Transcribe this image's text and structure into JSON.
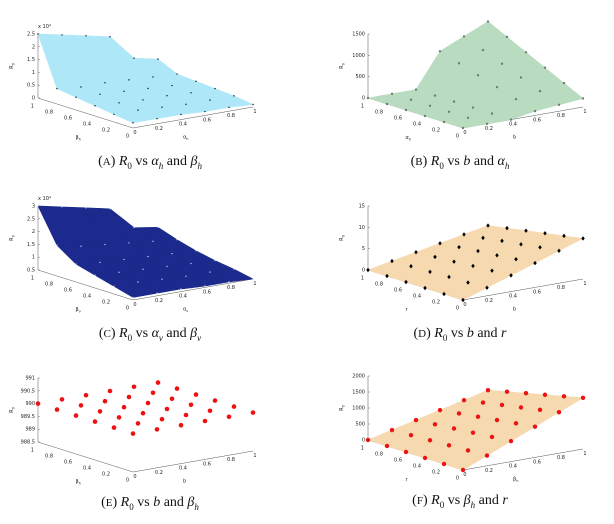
{
  "caption_words": {
    "lhs": "R",
    "lhs_sub": "0",
    "vs": "vs",
    "and": "and"
  },
  "chart_data": [
    {
      "type": "surface",
      "caption": {
        "letter": "A",
        "v1": "α",
        "v1_sub": "h",
        "v2": "β",
        "v2_sub": "h"
      },
      "xlabel": "α",
      "xlabel_sub": "h",
      "ylabel": "β",
      "ylabel_sub": "h",
      "zlabel": "R",
      "zlabel_sub": "0",
      "z_exponent": "x 10⁴",
      "zlim": [
        0,
        2.5
      ],
      "x_ticks": [
        "0",
        "0.2",
        "0.4",
        "0.6",
        "0.8",
        "1"
      ],
      "y_ticks": [
        "0",
        "0.2",
        "0.4",
        "0.6",
        "0.8",
        "1"
      ],
      "z_ticks": [
        "0",
        "0.5",
        "1",
        "1.5",
        "2",
        "2.5"
      ],
      "z_tick_values": [
        0,
        0.5,
        1,
        1.5,
        2,
        2.5
      ],
      "x": [
        0,
        0.2,
        0.4,
        0.6,
        0.8,
        1
      ],
      "y": [
        0,
        0.2,
        0.4,
        0.6,
        0.8,
        1
      ],
      "z": [
        [
          0.2,
          0.2,
          0.2,
          0.15,
          0.15,
          0.1
        ],
        [
          0.3,
          0.3,
          0.25,
          0.2,
          0.2,
          0.2
        ],
        [
          0.4,
          0.35,
          0.3,
          0.3,
          0.25,
          0.25
        ],
        [
          0.5,
          0.45,
          0.4,
          0.35,
          0.3,
          0.3
        ],
        [
          0.6,
          0.5,
          0.5,
          0.45,
          0.4,
          0.35
        ],
        [
          2.5,
          2.3,
          2.1,
          1.9,
          0.9,
          0.7
        ]
      ],
      "surface_color": "#aee8f8",
      "marker_color": "#111111",
      "marker": "dot"
    },
    {
      "type": "surface",
      "caption": {
        "letter": "B",
        "v1": "b",
        "v1_sub": "",
        "v2": "α",
        "v2_sub": "h"
      },
      "xlabel": "b",
      "xlabel_sub": "",
      "ylabel": "α",
      "ylabel_sub": "h",
      "zlabel": "R",
      "zlabel_sub": "0",
      "z_exponent": "",
      "zlim": [
        0,
        1500
      ],
      "x_ticks": [
        "0",
        "0.2",
        "0.4",
        "0.6",
        "0.8",
        "1"
      ],
      "y_ticks": [
        "0",
        "0.2",
        "0.4",
        "0.6",
        "0.8",
        "1"
      ],
      "z_ticks": [
        "0",
        "500",
        "1000",
        "1500"
      ],
      "z_tick_values": [
        0,
        500,
        1000,
        1500
      ],
      "x": [
        0,
        0.2,
        0.4,
        0.6,
        0.8,
        1
      ],
      "y": [
        0,
        0.2,
        0.4,
        0.6,
        0.8,
        1
      ],
      "z": [
        [
          0,
          0,
          0,
          100,
          150,
          200
        ],
        [
          0,
          0,
          0,
          240,
          330,
          420
        ],
        [
          0,
          0,
          0,
          380,
          510,
          640
        ],
        [
          0,
          0,
          0,
          520,
          690,
          860
        ],
        [
          0,
          0,
          0,
          660,
          870,
          1080
        ],
        [
          0,
          0,
          0,
          800,
          1050,
          1300
        ]
      ],
      "surface_color": "#b9dcc0",
      "marker_color": "#777777",
      "marker": "dot"
    },
    {
      "type": "surface",
      "caption": {
        "letter": "C",
        "v1": "α",
        "v1_sub": "v",
        "v2": "β",
        "v2_sub": "v"
      },
      "xlabel": "α",
      "xlabel_sub": "v",
      "ylabel": "β",
      "ylabel_sub": "v",
      "zlabel": "R",
      "zlabel_sub": "0",
      "z_exponent": "x 10⁴",
      "zlim": [
        0.5,
        3
      ],
      "x_ticks": [
        "0",
        "0.2",
        "0.4",
        "0.6",
        "0.8",
        "1"
      ],
      "y_ticks": [
        "0",
        "0.2",
        "0.4",
        "0.6",
        "0.8",
        "1"
      ],
      "z_ticks": [
        "0.5",
        "1",
        "1.5",
        "2",
        "2.5",
        "3"
      ],
      "z_tick_values": [
        0.5,
        1,
        1.5,
        2,
        2.5,
        3
      ],
      "x": [
        0,
        0.2,
        0.4,
        0.6,
        0.8,
        1
      ],
      "y": [
        0,
        0.2,
        0.4,
        0.6,
        0.8,
        1
      ],
      "z": [
        [
          0.6,
          0.6,
          0.6,
          0.55,
          0.55,
          0.5
        ],
        [
          0.8,
          0.8,
          0.75,
          0.7,
          0.7,
          0.65
        ],
        [
          1.0,
          0.95,
          0.9,
          0.85,
          0.8,
          0.75
        ],
        [
          1.2,
          1.1,
          1.05,
          1.0,
          0.95,
          0.9
        ],
        [
          1.7,
          1.5,
          1.4,
          1.3,
          1.2,
          1.1
        ],
        [
          3.0,
          2.8,
          2.6,
          2.4,
          1.5,
          1.35
        ]
      ],
      "surface_color": "#1b2a8c",
      "marker_color": "#c8cce8",
      "marker": "dot"
    },
    {
      "type": "surface",
      "caption": {
        "letter": "D",
        "v1": "b",
        "v1_sub": "",
        "v2": "r",
        "v2_sub": ""
      },
      "xlabel": "b",
      "xlabel_sub": "",
      "ylabel": "r",
      "ylabel_sub": "",
      "zlabel": "R",
      "zlabel_sub": "0",
      "z_exponent": "",
      "zlim": [
        0,
        15
      ],
      "x_ticks": [
        "0",
        "0.2",
        "0.4",
        "0.6",
        "0.8",
        "1"
      ],
      "y_ticks": [
        "0",
        "0.2",
        "0.4",
        "0.6",
        "0.8",
        "1"
      ],
      "z_ticks": [
        "0",
        "5",
        "10",
        "15"
      ],
      "z_tick_values": [
        0,
        5,
        10,
        15
      ],
      "x": [
        0,
        0.2,
        0.4,
        0.6,
        0.8,
        1
      ],
      "y": [
        0,
        0.2,
        0.4,
        0.6,
        0.8,
        1
      ],
      "z": [
        [
          0,
          1.9,
          3.8,
          5.7,
          7.6,
          9.5
        ],
        [
          0,
          1.7,
          3.5,
          5.2,
          7.0,
          8.7
        ],
        [
          0,
          1.6,
          3.2,
          4.7,
          6.3,
          7.9
        ],
        [
          0,
          1.4,
          2.8,
          4.3,
          5.7,
          7.1
        ],
        [
          0,
          1.3,
          2.5,
          3.8,
          5.0,
          6.3
        ],
        [
          0,
          1.1,
          2.2,
          3.3,
          4.4,
          5.5
        ]
      ],
      "surface_color": "#f7d9b0",
      "marker_color": "#000000",
      "marker": "diamond"
    },
    {
      "type": "surface",
      "caption": {
        "letter": "E",
        "v1": "b",
        "v1_sub": "",
        "v2": "β",
        "v2_sub": "h"
      },
      "xlabel": "b",
      "xlabel_sub": "",
      "ylabel": "β",
      "ylabel_sub": "h",
      "zlabel": "R",
      "zlabel_sub": "0",
      "z_exponent": "",
      "zlim": [
        988.5,
        991
      ],
      "x_ticks": [
        "0",
        "0.2",
        "0.4",
        "0.6",
        "0.8",
        "1"
      ],
      "y_ticks": [
        "0",
        "0.2",
        "0.4",
        "0.6",
        "0.8",
        "1"
      ],
      "z_ticks": [
        "988.5",
        "989",
        "989.5",
        "990",
        "990.5",
        "991"
      ],
      "z_tick_values": [
        988.5,
        989,
        989.5,
        990,
        990.5,
        991
      ],
      "x": [
        0,
        0.2,
        0.4,
        0.6,
        0.8,
        1
      ],
      "y": [
        0,
        0.2,
        0.4,
        0.6,
        0.8,
        1
      ],
      "z": [
        [
          990,
          990,
          990,
          990,
          990,
          990
        ],
        [
          990,
          990,
          990,
          990,
          990,
          990
        ],
        [
          990,
          990,
          990,
          990,
          990,
          990
        ],
        [
          990,
          990,
          990,
          990,
          990,
          990
        ],
        [
          990,
          990,
          990,
          990,
          990,
          990
        ],
        [
          990,
          990,
          990,
          990,
          990,
          990
        ]
      ],
      "surface_color": "none",
      "marker_color": "#ee1111",
      "marker": "dot"
    },
    {
      "type": "surface",
      "caption": {
        "letter": "F",
        "v1": "β",
        "v1_sub": "h",
        "v2": "r",
        "v2_sub": ""
      },
      "xlabel": "β",
      "xlabel_sub": "h",
      "ylabel": "r",
      "ylabel_sub": "",
      "zlabel": "R",
      "zlabel_sub": "0",
      "z_exponent": "",
      "zlim": [
        0,
        2000
      ],
      "x_ticks": [
        "0",
        "0.2",
        "0.4",
        "0.6",
        "0.8",
        "1"
      ],
      "y_ticks": [
        "0",
        "0.2",
        "0.4",
        "0.6",
        "0.8",
        "1"
      ],
      "z_ticks": [
        "0",
        "500",
        "1000",
        "1500",
        "2000"
      ],
      "z_tick_values": [
        0,
        500,
        1000,
        1500,
        2000
      ],
      "x": [
        0,
        0.2,
        0.4,
        0.6,
        0.8,
        1
      ],
      "y": [
        0,
        0.2,
        0.4,
        0.6,
        0.8,
        1
      ],
      "z": [
        [
          0,
          320,
          640,
          960,
          1280,
          1600
        ],
        [
          0,
          292,
          584,
          876,
          1168,
          1460
        ],
        [
          0,
          264,
          528,
          792,
          1056,
          1320
        ],
        [
          0,
          236,
          472,
          708,
          944,
          1180
        ],
        [
          0,
          208,
          416,
          624,
          832,
          1040
        ],
        [
          0,
          180,
          360,
          540,
          720,
          900
        ]
      ],
      "surface_color": "#f7d9b0",
      "marker_color": "#ee1111",
      "marker": "dot"
    }
  ]
}
